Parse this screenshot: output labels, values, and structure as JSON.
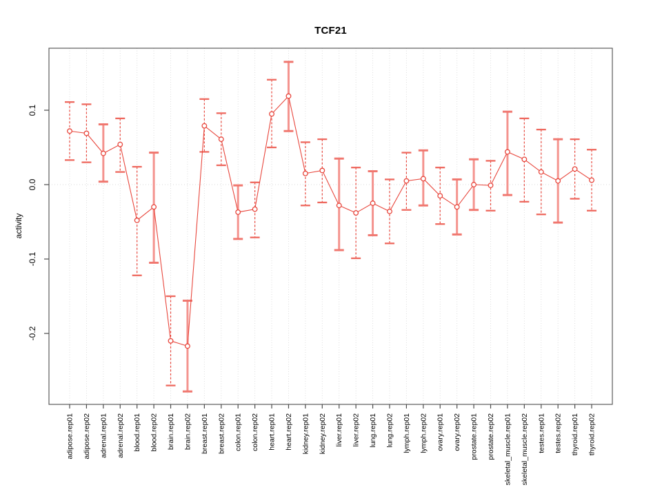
{
  "chart_data": {
    "type": "scatter",
    "title": "TCF21",
    "xlabel": "",
    "ylabel": "activity",
    "ylim": [
      -0.295,
      0.183
    ],
    "ytick_labels": [
      "0.1",
      "0.0",
      "-0.1",
      "-0.2"
    ],
    "ytick_values": [
      0.1,
      0.0,
      -0.1,
      -0.2
    ],
    "grid": "vertical dotted gridline per category, dotted horizontal line at y=0",
    "legend": "none",
    "categories": [
      "adipose.rep01",
      "adipose.rep02",
      "adrenal.rep01",
      "adrenal.rep02",
      "blood.rep01",
      "blood.rep02",
      "brain.rep01",
      "brain.rep02",
      "breast.rep01",
      "breast.rep02",
      "colon.rep01",
      "colon.rep02",
      "heart.rep01",
      "heart.rep02",
      "kidney.rep01",
      "kidney.rep02",
      "liver.rep01",
      "liver.rep02",
      "lung.rep01",
      "lung.rep02",
      "lymph.rep01",
      "lymph.rep02",
      "ovary.rep01",
      "ovary.rep02",
      "prostate.rep01",
      "prostate.rep02",
      "skeletal_muscle.rep01",
      "skeletal_muscle.rep02",
      "testes.rep01",
      "testes.rep02",
      "thyroid.rep01",
      "thyroid.rep02"
    ],
    "series": [
      {
        "name": "activity",
        "marker": "open-circle",
        "values": [
          0.072,
          0.069,
          0.042,
          0.054,
          -0.048,
          -0.03,
          -0.21,
          -0.217,
          0.079,
          0.061,
          -0.037,
          -0.033,
          0.095,
          0.119,
          0.015,
          0.019,
          -0.028,
          -0.038,
          -0.025,
          -0.036,
          0.005,
          0.008,
          -0.015,
          -0.03,
          0.0,
          -0.001,
          0.044,
          0.034,
          0.017,
          0.005,
          0.021,
          0.006
        ],
        "ci_low": [
          0.033,
          0.03,
          0.004,
          0.017,
          -0.122,
          -0.105,
          -0.27,
          -0.278,
          0.044,
          0.026,
          -0.073,
          -0.071,
          0.05,
          0.072,
          -0.028,
          -0.024,
          -0.088,
          -0.099,
          -0.068,
          -0.079,
          -0.034,
          -0.028,
          -0.053,
          -0.067,
          -0.034,
          -0.035,
          -0.014,
          -0.023,
          -0.04,
          -0.051,
          -0.019,
          -0.035
        ],
        "ci_high": [
          0.111,
          0.108,
          0.081,
          0.089,
          0.024,
          0.043,
          -0.15,
          -0.156,
          0.115,
          0.096,
          -0.001,
          0.003,
          0.141,
          0.165,
          0.057,
          0.061,
          0.035,
          0.023,
          0.018,
          0.007,
          0.043,
          0.046,
          0.023,
          0.007,
          0.034,
          0.032,
          0.098,
          0.089,
          0.074,
          0.061,
          0.061,
          0.047
        ],
        "bar_styles": [
          "dashed",
          "dashed",
          "solid",
          "dashed",
          "dashed",
          "solid",
          "dashed",
          "solid",
          "dashed",
          "dashed",
          "solid",
          "dashed",
          "dashed",
          "solid",
          "dashed",
          "dashed",
          "solid",
          "dashed",
          "solid",
          "dashed",
          "dashed",
          "solid",
          "dashed",
          "solid",
          "solid",
          "dashed",
          "solid",
          "dashed",
          "dashed",
          "solid",
          "dashed",
          "dashed"
        ]
      }
    ],
    "colors": {
      "point": "#e8463c",
      "series_line": "#e8463c",
      "bar_dashed": "#e8463c",
      "bar_solid": "#f4938e",
      "cap_dashed": "#ee685e",
      "cap_solid": "#f végre0776f",
      "cap": "#ef6f66",
      "grid": "#d9d9d9",
      "frame": "#5a5a5a",
      "tick": "#4a4a4a",
      "text": "#000000",
      "background": "#ffffff"
    }
  }
}
